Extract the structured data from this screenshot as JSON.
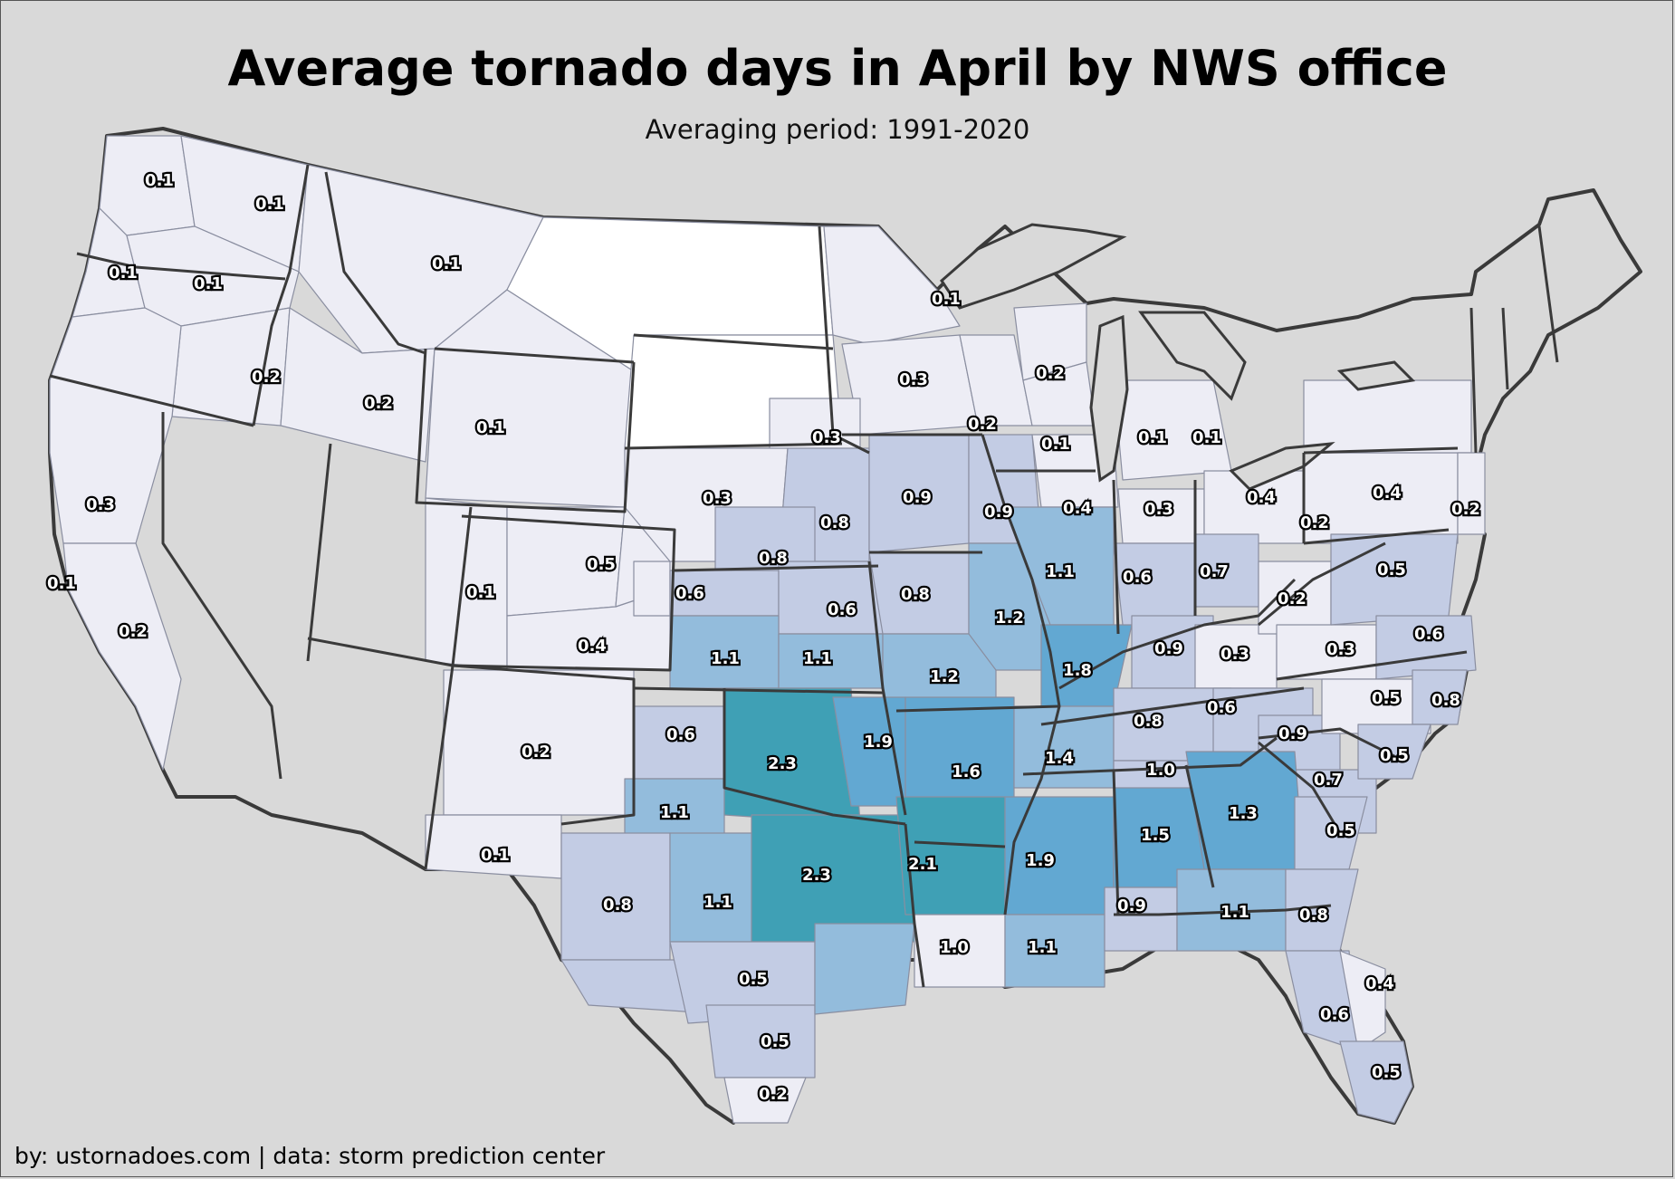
{
  "title": "Average tornado days in April by NWS office",
  "subtitle": "Averaging period: 1991-2020",
  "credit": "by: ustornadoes.com | data: storm prediction center",
  "colors": {
    "background": "#d9d9d9",
    "no_data": "#ffffff",
    "scale": [
      "#ededf5",
      "#c3cce4",
      "#93bcdc",
      "#62a8d2",
      "#3fa0b5"
    ]
  },
  "legend_breaks": [
    0.4,
    0.9,
    1.2,
    2.0
  ],
  "offices": [
    {
      "value": "0.1"
    },
    {
      "value": "0.1"
    },
    {
      "value": "0.1"
    },
    {
      "value": "0.1"
    },
    {
      "value": "0.1"
    },
    {
      "value": "0.2"
    },
    {
      "value": "0.2"
    },
    {
      "value": "0.1"
    },
    {
      "value": "0.3"
    },
    {
      "value": "0.1"
    },
    {
      "value": "0.2"
    },
    {
      "value": "0.5"
    },
    {
      "value": "0.1"
    },
    {
      "value": "0.4"
    },
    {
      "value": "0.2"
    },
    {
      "value": "0.1"
    },
    {
      "value": "0.1"
    },
    {
      "value": "0.3"
    },
    {
      "value": "0.2"
    },
    {
      "value": "0.2"
    },
    {
      "value": "0.3"
    },
    {
      "value": "0.1"
    },
    {
      "value": "0.1"
    },
    {
      "value": "0.1"
    },
    {
      "value": "0.3"
    },
    {
      "value": "0.9"
    },
    {
      "value": "0.9"
    },
    {
      "value": "0.4"
    },
    {
      "value": "0.3"
    },
    {
      "value": "0.4"
    },
    {
      "value": "0.4"
    },
    {
      "value": "0.2"
    },
    {
      "value": "0.2"
    },
    {
      "value": "0.8"
    },
    {
      "value": "0.8"
    },
    {
      "value": "0.6"
    },
    {
      "value": "0.6"
    },
    {
      "value": "0.8"
    },
    {
      "value": "1.1"
    },
    {
      "value": "0.6"
    },
    {
      "value": "0.7"
    },
    {
      "value": "0.5"
    },
    {
      "value": "1.2"
    },
    {
      "value": "1.1"
    },
    {
      "value": "1.1"
    },
    {
      "value": "1.2"
    },
    {
      "value": "1.8"
    },
    {
      "value": "0.9"
    },
    {
      "value": "0.3"
    },
    {
      "value": "0.2"
    },
    {
      "value": "0.3"
    },
    {
      "value": "0.6"
    },
    {
      "value": "0.6"
    },
    {
      "value": "2.3"
    },
    {
      "value": "1.9"
    },
    {
      "value": "1.6"
    },
    {
      "value": "0.8"
    },
    {
      "value": "0.6"
    },
    {
      "value": "0.5"
    },
    {
      "value": "0.8"
    },
    {
      "value": "1.4"
    },
    {
      "value": "0.9"
    },
    {
      "value": "1.1"
    },
    {
      "value": "1.0"
    },
    {
      "value": "0.7"
    },
    {
      "value": "0.5"
    },
    {
      "value": "2.3"
    },
    {
      "value": "2.1"
    },
    {
      "value": "1.9"
    },
    {
      "value": "1.5"
    },
    {
      "value": "1.3"
    },
    {
      "value": "0.5"
    },
    {
      "value": "0.8"
    },
    {
      "value": "1.1"
    },
    {
      "value": "0.9"
    },
    {
      "value": "1.1"
    },
    {
      "value": "0.8"
    },
    {
      "value": "1.0"
    },
    {
      "value": "1.1"
    },
    {
      "value": "0.5"
    },
    {
      "value": "0.4"
    },
    {
      "value": "0.6"
    },
    {
      "value": "0.5"
    },
    {
      "value": "0.5"
    },
    {
      "value": "0.2"
    }
  ]
}
